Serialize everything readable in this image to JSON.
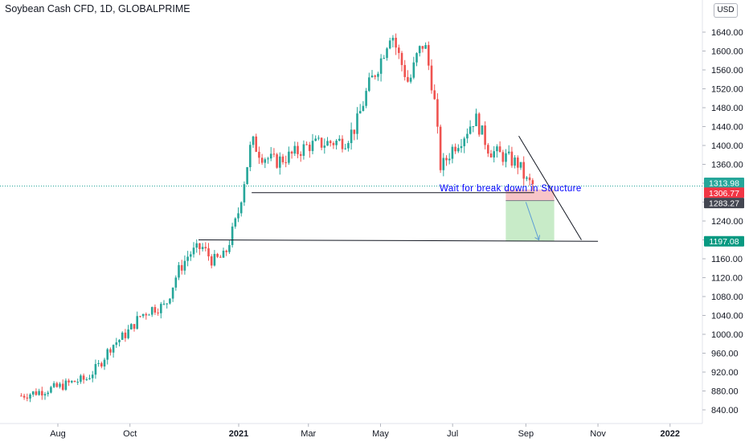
{
  "header": {
    "title": "Soybean Cash CFD, 1D, GLOBALPRIME",
    "currency": "USD"
  },
  "chart_data": {
    "type": "candlestick",
    "title": "Soybean Cash CFD, 1D, GLOBALPRIME",
    "ylabel": "USD",
    "ylim": [
      800,
      1680
    ],
    "y_ticks": [
      "840.00",
      "880.00",
      "920.00",
      "960.00",
      "1000.00",
      "1040.00",
      "1080.00",
      "1120.00",
      "1160.00",
      "1200.00",
      "1240.00",
      "1280.00",
      "1320.00",
      "1360.00",
      "1400.00",
      "1440.00",
      "1480.00",
      "1520.00",
      "1560.00",
      "1600.00",
      "1640.00"
    ],
    "x_ticks": [
      {
        "label": "Aug",
        "date": "2020-08-01",
        "bold": false
      },
      {
        "label": "Oct",
        "date": "2020-10-01",
        "bold": false
      },
      {
        "label": "2021",
        "date": "2021-01-01",
        "bold": true
      },
      {
        "label": "Mar",
        "date": "2021-03-01",
        "bold": false
      },
      {
        "label": "May",
        "date": "2021-05-01",
        "bold": false
      },
      {
        "label": "Jul",
        "date": "2021-07-01",
        "bold": false
      },
      {
        "label": "Sep",
        "date": "2021-09-01",
        "bold": false
      },
      {
        "label": "Nov",
        "date": "2021-11-01",
        "bold": false
      },
      {
        "label": "2022",
        "date": "2022-01-01",
        "bold": true
      }
    ],
    "grid": false,
    "path": [
      [
        "2020-07-01",
        870
      ],
      [
        "2020-07-15",
        878
      ],
      [
        "2020-08-01",
        888
      ],
      [
        "2020-08-15",
        900
      ],
      [
        "2020-08-25",
        905
      ],
      [
        "2020-09-05",
        935
      ],
      [
        "2020-09-15",
        975
      ],
      [
        "2020-09-25",
        995
      ],
      [
        "2020-10-01",
        1010
      ],
      [
        "2020-10-10",
        1040
      ],
      [
        "2020-10-20",
        1055
      ],
      [
        "2020-10-31",
        1060
      ],
      [
        "2020-11-10",
        1130
      ],
      [
        "2020-11-20",
        1170
      ],
      [
        "2020-12-01",
        1185
      ],
      [
        "2020-12-10",
        1155
      ],
      [
        "2020-12-20",
        1165
      ],
      [
        "2020-12-31",
        1250
      ],
      [
        "2021-01-06",
        1330
      ],
      [
        "2021-01-12",
        1410
      ],
      [
        "2021-01-20",
        1380
      ],
      [
        "2021-02-01",
        1365
      ],
      [
        "2021-02-15",
        1380
      ],
      [
        "2021-03-01",
        1400
      ],
      [
        "2021-03-15",
        1405
      ],
      [
        "2021-04-01",
        1410
      ],
      [
        "2021-04-10",
        1440
      ],
      [
        "2021-04-20",
        1520
      ],
      [
        "2021-05-01",
        1580
      ],
      [
        "2021-05-10",
        1645
      ],
      [
        "2021-05-15",
        1600
      ],
      [
        "2021-05-25",
        1530
      ],
      [
        "2021-06-01",
        1590
      ],
      [
        "2021-06-07",
        1620
      ],
      [
        "2021-06-15",
        1510
      ],
      [
        "2021-06-21",
        1350
      ],
      [
        "2021-07-01",
        1395
      ],
      [
        "2021-07-10",
        1420
      ],
      [
        "2021-07-20",
        1460
      ],
      [
        "2021-08-01",
        1390
      ],
      [
        "2021-08-15",
        1375
      ],
      [
        "2021-08-26",
        1360
      ],
      [
        "2021-09-01",
        1325
      ],
      [
        "2021-09-08",
        1313.98
      ]
    ],
    "last_price": 1313.98,
    "price_labels": [
      {
        "value": 1313.98,
        "text": "1313.98",
        "color": "#26a69a"
      },
      {
        "value": 1306.77,
        "text": "1306.77",
        "color": "#f23645"
      },
      {
        "value": 1283.27,
        "text": "1283.27",
        "color": "#434651"
      },
      {
        "value": 1197.08,
        "text": "1197.08",
        "color": "#089981"
      }
    ],
    "drawings": {
      "structure_line": {
        "from": [
          "2021-01-12",
          1300
        ],
        "to": [
          "2021-09-08",
          1300
        ]
      },
      "support_line": {
        "from": [
          "2020-11-28",
          1200
        ],
        "to": [
          "2021-11-01",
          1197.08
        ]
      },
      "trend_line": {
        "from": [
          "2021-08-26",
          1420
        ],
        "to": [
          "2021-10-18",
          1200
        ]
      },
      "stop_zone": {
        "from": "2021-08-15",
        "to": "2021-09-25",
        "top": 1306.77,
        "bottom": 1283.27
      },
      "target_zone": {
        "from": "2021-08-15",
        "to": "2021-09-25",
        "top": 1283.27,
        "bottom": 1197.08
      },
      "arrow": {
        "from": [
          "2021-09-01",
          1280
        ],
        "to": [
          "2021-09-12",
          1200
        ]
      },
      "annotation": {
        "text": "Wait for break down in Structure",
        "date": "2021-06-20",
        "value": 1303
      }
    },
    "colors": {
      "up": "#26a69a",
      "down": "#ef5350",
      "stop": "#f8c5c8",
      "target": "#c8ebc8",
      "arrow": "#5b9bd5",
      "text": "#0000ff"
    }
  }
}
